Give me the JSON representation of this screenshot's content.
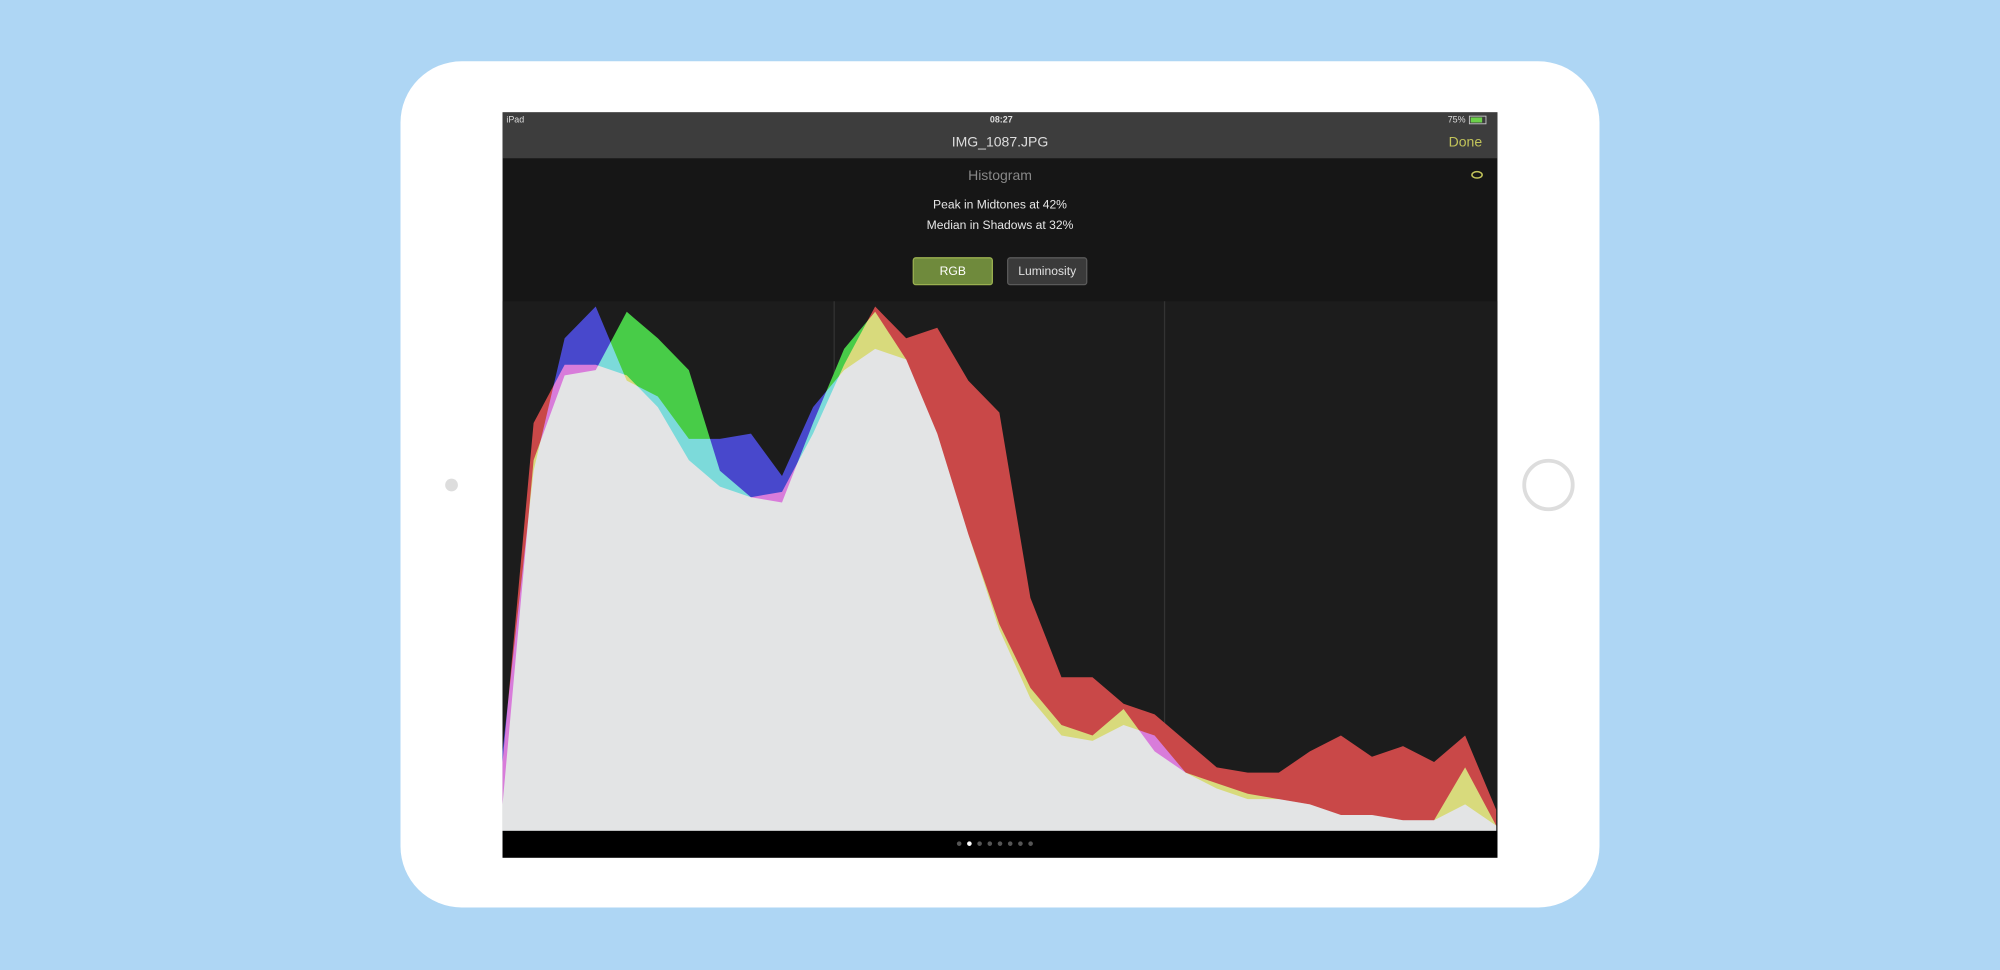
{
  "status_bar": {
    "device": "iPad",
    "time": "08:27",
    "battery": "75%"
  },
  "nav": {
    "title": "IMG_1087.JPG",
    "done": "Done"
  },
  "panel": {
    "title": "Histogram",
    "lines": [
      "Peak in Midtones at 42%",
      "Median in Shadows at 32%"
    ],
    "buttons": [
      "RGB",
      "Luminosity"
    ]
  },
  "chart_data": {
    "type": "area",
    "ylim": [
      0,
      100
    ],
    "series": [
      {
        "color": "#c94848",
        "values": [
          13,
          77,
          88,
          88,
          86,
          80,
          70,
          65,
          63,
          64,
          75,
          88,
          99,
          93,
          95,
          85,
          79,
          44,
          29,
          29,
          24,
          22,
          17,
          12,
          11,
          11,
          15,
          18,
          14,
          16,
          13,
          18,
          4
        ]
      },
      {
        "color": "#48cc48",
        "values": [
          5,
          70,
          86,
          87,
          98,
          93,
          87,
          68,
          63,
          62,
          77,
          91,
          98,
          89,
          75,
          56,
          39,
          27,
          20,
          18,
          23,
          15,
          11,
          9,
          7,
          6,
          5,
          3,
          3,
          2,
          2,
          12,
          1
        ]
      },
      {
        "color": "#4848cc",
        "values": [
          15,
          68,
          93,
          99,
          85,
          82,
          74,
          74,
          75,
          67,
          80,
          87,
          91,
          89,
          75,
          56,
          38,
          25,
          18,
          17,
          20,
          18,
          11,
          8,
          6,
          6,
          5,
          3,
          3,
          2,
          2,
          5,
          1
        ]
      }
    ]
  }
}
